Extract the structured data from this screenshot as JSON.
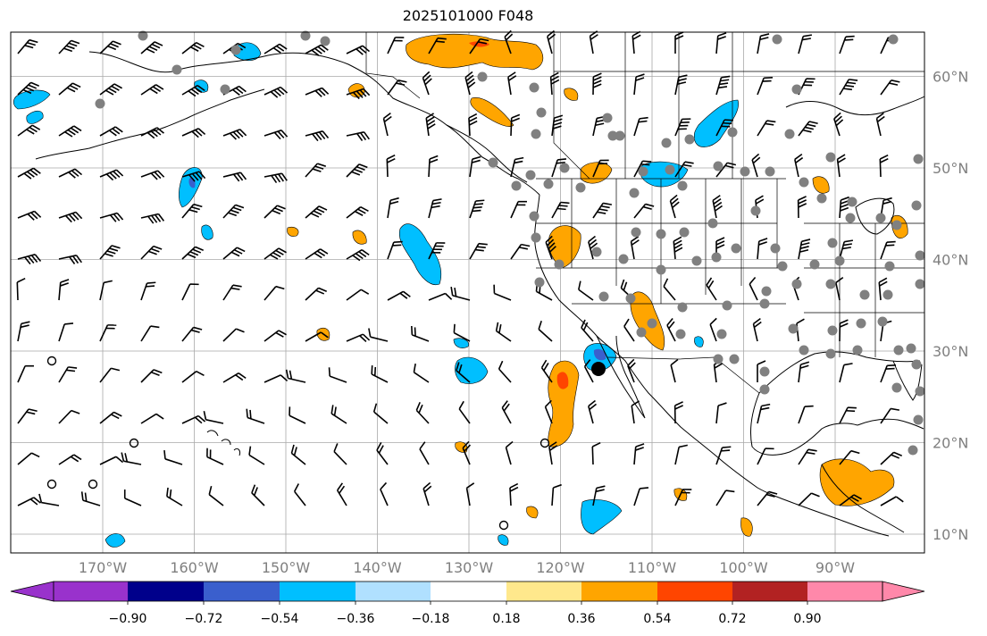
{
  "title": "2025101000 F048",
  "map": {
    "lat_labels": [
      "60°N",
      "50°N",
      "40°N",
      "30°N",
      "20°N",
      "10°N"
    ],
    "lon_labels": [
      "170°W",
      "160°W",
      "150°W",
      "140°W",
      "130°W",
      "120°W",
      "110°W",
      "100°W",
      "90°W"
    ],
    "lon_range": [
      -180,
      -80
    ],
    "lat_range": [
      8,
      65
    ],
    "grid": true,
    "grid_color": "#a9a9a9",
    "coast_color": "#000000",
    "station_marker_color": "#808080",
    "highlight_marker_color": "#000000"
  },
  "colorbar": {
    "ticks": [
      "−0.90",
      "−0.72",
      "−0.54",
      "−0.36",
      "−0.18",
      "0.18",
      "0.36",
      "0.54",
      "0.72",
      "0.90"
    ],
    "colors": [
      "#9932cc",
      "#00008b",
      "#3a5fcd",
      "#00bfff",
      "#b0e0ff",
      "#ffffff",
      "#ffe88c",
      "#ffa500",
      "#ff4500",
      "#b22222",
      "#ff88aa"
    ]
  }
}
